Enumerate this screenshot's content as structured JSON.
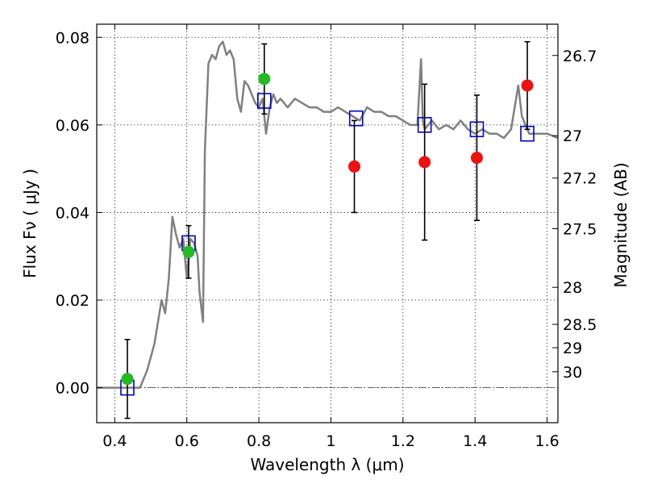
{
  "chart_data": {
    "type": "scatter",
    "title": "",
    "xlabel": "Wavelength  λ (μm)",
    "ylabel": "Flux  Fν  ( μJy )",
    "y2label": "Magnitude (AB)",
    "xlim": [
      0.35,
      1.63
    ],
    "ylim": [
      -0.008,
      0.083
    ],
    "grid": true,
    "grid_style": "dotted",
    "legend": "none",
    "x_ticks": [
      {
        "value": 0.4,
        "label": "0.4"
      },
      {
        "value": 0.6,
        "label": "0.6"
      },
      {
        "value": 0.8,
        "label": "0.8"
      },
      {
        "value": 1.0,
        "label": "1"
      },
      {
        "value": 1.2,
        "label": "1.2"
      },
      {
        "value": 1.4,
        "label": "1.4"
      },
      {
        "value": 1.6,
        "label": "1.6"
      }
    ],
    "y_ticks": [
      {
        "value": 0.0,
        "label": "0.00"
      },
      {
        "value": 0.02,
        "label": "0.02"
      },
      {
        "value": 0.04,
        "label": "0.04"
      },
      {
        "value": 0.06,
        "label": "0.06"
      },
      {
        "value": 0.08,
        "label": "0.08"
      }
    ],
    "y2_ticks": [
      {
        "value": 26.7,
        "label": "26.7"
      },
      {
        "value": 27,
        "label": "27"
      },
      {
        "value": 27.2,
        "label": "27.2"
      },
      {
        "value": 27.5,
        "label": "27.5"
      },
      {
        "value": 28,
        "label": "28"
      },
      {
        "value": 28.5,
        "label": "28.5"
      },
      {
        "value": 29,
        "label": "29"
      },
      {
        "value": 30,
        "label": "30"
      }
    ],
    "zero_line": {
      "y": 0.0,
      "style": "dash-dot",
      "color": "#555555"
    },
    "series": [
      {
        "mark": "line",
        "color": "#808080",
        "x": [
          0.35,
          0.47,
          0.49,
          0.51,
          0.53,
          0.54,
          0.55,
          0.56,
          0.57,
          0.58,
          0.59,
          0.6,
          0.61,
          0.62,
          0.63,
          0.635,
          0.645,
          0.65,
          0.66,
          0.67,
          0.68,
          0.69,
          0.7,
          0.71,
          0.72,
          0.73,
          0.74,
          0.75,
          0.76,
          0.77,
          0.78,
          0.79,
          0.8,
          0.81,
          0.82,
          0.83,
          0.84,
          0.85,
          0.86,
          0.88,
          0.9,
          0.92,
          0.94,
          0.96,
          0.98,
          1.0,
          1.02,
          1.04,
          1.06,
          1.08,
          1.1,
          1.12,
          1.14,
          1.16,
          1.18,
          1.2,
          1.22,
          1.24,
          1.25,
          1.255,
          1.26,
          1.28,
          1.3,
          1.32,
          1.34,
          1.36,
          1.38,
          1.4,
          1.42,
          1.44,
          1.46,
          1.48,
          1.5,
          1.52,
          1.53,
          1.55,
          1.57,
          1.6,
          1.63
        ],
        "y": [
          0.0,
          0.0,
          0.004,
          0.01,
          0.02,
          0.017,
          0.025,
          0.039,
          0.035,
          0.032,
          0.034,
          0.025,
          0.034,
          0.033,
          0.03,
          0.022,
          0.015,
          0.054,
          0.074,
          0.076,
          0.075,
          0.078,
          0.079,
          0.076,
          0.077,
          0.075,
          0.066,
          0.063,
          0.07,
          0.069,
          0.067,
          0.065,
          0.064,
          0.066,
          0.058,
          0.064,
          0.067,
          0.065,
          0.066,
          0.064,
          0.066,
          0.065,
          0.064,
          0.064,
          0.063,
          0.063,
          0.064,
          0.063,
          0.062,
          0.061,
          0.064,
          0.063,
          0.063,
          0.062,
          0.062,
          0.061,
          0.06,
          0.06,
          0.075,
          0.061,
          0.059,
          0.061,
          0.059,
          0.06,
          0.059,
          0.061,
          0.059,
          0.058,
          0.059,
          0.058,
          0.058,
          0.057,
          0.059,
          0.069,
          0.062,
          0.058,
          0.058,
          0.058,
          0.057
        ]
      },
      {
        "mark": "square",
        "color": "#0000cc",
        "x": [
          0.435,
          0.605,
          0.815,
          1.07,
          1.26,
          1.405,
          1.545
        ],
        "y": [
          0.0,
          0.033,
          0.0655,
          0.0615,
          0.06,
          0.059,
          0.058
        ]
      },
      {
        "mark": "circle",
        "color": "#22bb22",
        "x": [
          0.435,
          0.605,
          0.815
        ],
        "y": [
          0.002,
          0.031,
          0.0705
        ],
        "err_low": [
          0.009,
          0.006,
          0.008
        ],
        "err_high": [
          0.009,
          0.006,
          0.008
        ]
      },
      {
        "mark": "circle",
        "color": "#ee1111",
        "x": [
          1.065,
          1.26,
          1.405,
          1.545
        ],
        "y": [
          0.0505,
          0.0515,
          0.0525,
          0.069
        ],
        "err_low": [
          0.0105,
          0.0178,
          0.0143,
          0.01
        ],
        "err_high": [
          0.0105,
          0.0178,
          0.0143,
          0.01
        ]
      }
    ]
  }
}
